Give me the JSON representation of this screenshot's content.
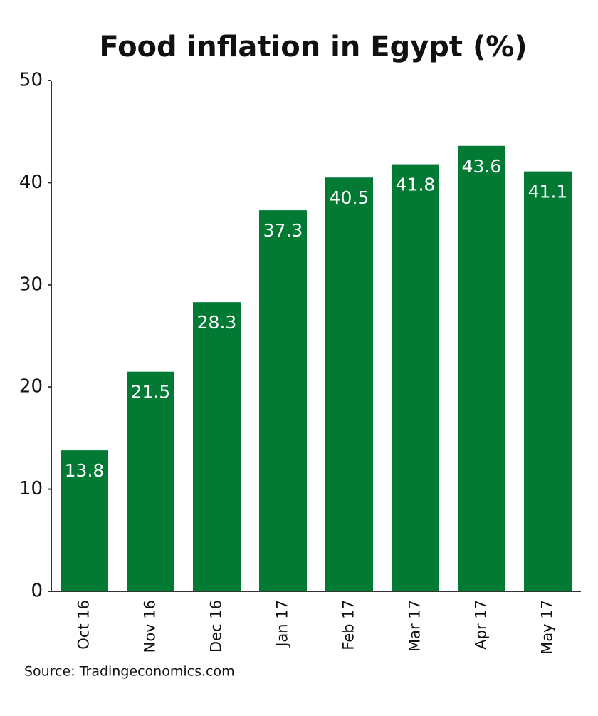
{
  "chart_data": {
    "type": "bar",
    "title": "Food inflation in Egypt (%)",
    "categories": [
      "Oct 16",
      "Nov 16",
      "Dec 16",
      "Jan 17",
      "Feb 17",
      "Mar 17",
      "Apr 17",
      "May 17"
    ],
    "values": [
      13.8,
      21.5,
      28.3,
      37.3,
      40.5,
      41.8,
      43.6,
      41.1
    ],
    "color": "#037a34",
    "ylim": [
      0,
      50
    ],
    "yticks": [
      0,
      10,
      20,
      30,
      40,
      50
    ],
    "grid": false,
    "source": "Source: Tradingeconomics.com"
  }
}
